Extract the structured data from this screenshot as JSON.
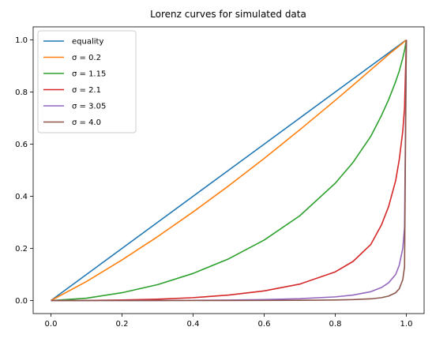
{
  "chart_data": {
    "type": "line",
    "title": "Lorenz curves for simulated data",
    "xlabel": "",
    "ylabel": "",
    "xlim": [
      -0.05,
      1.05
    ],
    "ylim": [
      -0.05,
      1.05
    ],
    "xticks": [
      0.0,
      0.2,
      0.4,
      0.6,
      0.8,
      1.0
    ],
    "xtick_labels": [
      "0.0",
      "0.2",
      "0.4",
      "0.6",
      "0.8",
      "1.0"
    ],
    "yticks": [
      0.0,
      0.2,
      0.4,
      0.6,
      0.8,
      1.0
    ],
    "ytick_labels": [
      "0.0",
      "0.2",
      "0.4",
      "0.6",
      "0.8",
      "1.0"
    ],
    "grid": false,
    "legend_position": "upper-left",
    "x": [
      0.0,
      0.1,
      0.2,
      0.3,
      0.4,
      0.5,
      0.6,
      0.7,
      0.8,
      0.85,
      0.9,
      0.93,
      0.95,
      0.97,
      0.98,
      0.99,
      0.995,
      1.0
    ],
    "series": [
      {
        "name": "equality",
        "color": "#1f77b4",
        "values": [
          0.0,
          0.1,
          0.2,
          0.3,
          0.4,
          0.5,
          0.6,
          0.7,
          0.8,
          0.85,
          0.9,
          0.93,
          0.95,
          0.97,
          0.98,
          0.99,
          0.995,
          1.0
        ]
      },
      {
        "name": "σ = 0.2",
        "color": "#ff7f0e",
        "values": [
          0.0,
          0.073,
          0.156,
          0.245,
          0.34,
          0.44,
          0.545,
          0.655,
          0.768,
          0.826,
          0.885,
          0.92,
          0.944,
          0.966,
          0.977,
          0.988,
          0.994,
          1.0
        ]
      },
      {
        "name": "σ = 1.15",
        "color": "#2ca02c",
        "values": [
          0.0,
          0.009,
          0.03,
          0.061,
          0.104,
          0.16,
          0.232,
          0.325,
          0.45,
          0.53,
          0.63,
          0.71,
          0.77,
          0.84,
          0.88,
          0.93,
          0.96,
          1.0
        ]
      },
      {
        "name": "σ = 2.1",
        "color": "#d62728",
        "values": [
          0.0,
          0.0004,
          0.002,
          0.005,
          0.011,
          0.021,
          0.037,
          0.063,
          0.11,
          0.15,
          0.215,
          0.29,
          0.36,
          0.46,
          0.54,
          0.65,
          0.74,
          1.0
        ]
      },
      {
        "name": "σ = 3.05",
        "color": "#9467bd",
        "values": [
          0.0,
          0.0,
          0.0001,
          0.0003,
          0.0008,
          0.0018,
          0.0036,
          0.007,
          0.014,
          0.021,
          0.034,
          0.05,
          0.068,
          0.1,
          0.135,
          0.2,
          0.28,
          1.0
        ]
      },
      {
        "name": "σ = 4.0",
        "color": "#8c564b",
        "values": [
          0.0,
          0.0,
          0.0,
          0.0,
          0.0001,
          0.0002,
          0.0004,
          0.0009,
          0.002,
          0.0035,
          0.0065,
          0.011,
          0.017,
          0.03,
          0.045,
          0.08,
          0.13,
          1.0
        ]
      }
    ]
  }
}
